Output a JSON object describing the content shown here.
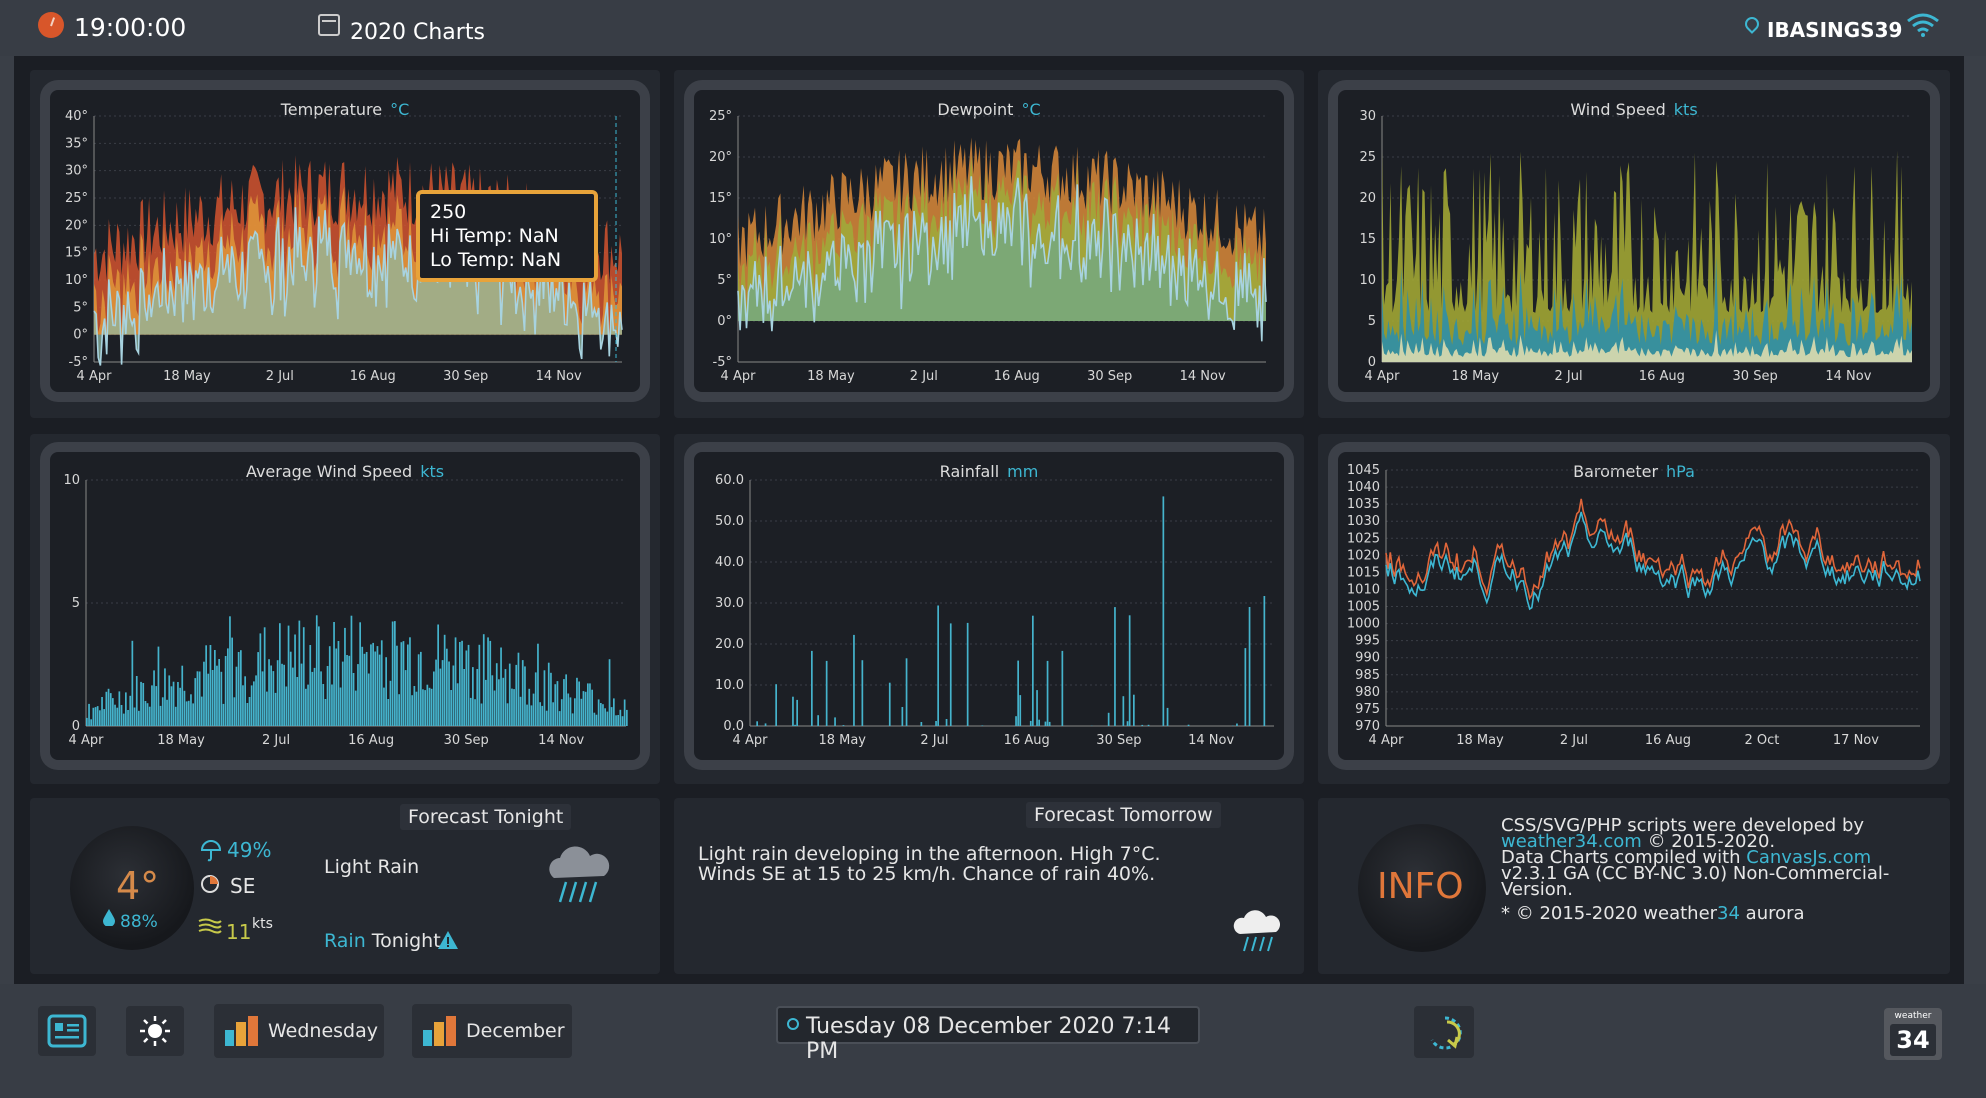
{
  "topbar": {
    "time": "19:00:00",
    "title": "2020 Charts",
    "station": "IBASINGS39",
    "icons": {
      "clock": "clock-icon",
      "calendar": "calendar-icon",
      "location": "location-pin-icon",
      "wifi": "wifi-icon"
    }
  },
  "colors": {
    "accent": "#3db7d2",
    "orange": "#e0773a",
    "background": "#1b1e24"
  },
  "charts": [
    {
      "title": "Temperature",
      "unit": "°C"
    },
    {
      "title": "Dewpoint",
      "unit": "°C"
    },
    {
      "title": "Wind Speed",
      "unit": "kts"
    },
    {
      "title": "Average Wind Speed",
      "unit": "kts"
    },
    {
      "title": "Rainfall",
      "unit": "mm"
    },
    {
      "title": "Barometer",
      "unit": "hPa"
    }
  ],
  "tooltip": {
    "line1": "250",
    "line2": "Hi Temp:  NaN",
    "line3": "Lo Temp:  NaN"
  },
  "chart_data": [
    {
      "type": "area",
      "title": "Temperature",
      "ylabel": "°C",
      "ylim": [
        -5,
        40
      ],
      "yticks": [
        "40°",
        "35°",
        "30°",
        "25°",
        "20°",
        "15°",
        "10°",
        "5°",
        "0°",
        "-5°"
      ],
      "xticks": [
        "4 Apr",
        "18 May",
        "2 Jul",
        "16 Aug",
        "30 Sep",
        "14 Nov"
      ],
      "grid": true
    },
    {
      "type": "area",
      "title": "Dewpoint",
      "ylabel": "°C",
      "ylim": [
        -5,
        25
      ],
      "yticks": [
        "25°",
        "20°",
        "15°",
        "10°",
        "5°",
        "0°",
        "-5°"
      ],
      "xticks": [
        "4 Apr",
        "18 May",
        "2 Jul",
        "16 Aug",
        "30 Sep",
        "14 Nov"
      ],
      "grid": true
    },
    {
      "type": "area",
      "title": "Wind Speed",
      "ylabel": "kts",
      "ylim": [
        0,
        30
      ],
      "yticks": [
        "30",
        "25",
        "20",
        "15",
        "10",
        "5",
        "0"
      ],
      "xticks": [
        "4 Apr",
        "18 May",
        "2 Jul",
        "16 Aug",
        "30 Sep",
        "14 Nov"
      ],
      "grid": true
    },
    {
      "type": "bar",
      "title": "Average Wind Speed",
      "ylabel": "kts",
      "ylim": [
        0,
        10
      ],
      "yticks": [
        "10",
        "5",
        "0"
      ],
      "xticks": [
        "4 Apr",
        "18 May",
        "2 Jul",
        "16 Aug",
        "30 Sep",
        "14 Nov"
      ],
      "grid": true
    },
    {
      "type": "bar",
      "title": "Rainfall",
      "ylabel": "mm",
      "ylim": [
        0,
        60
      ],
      "yticks": [
        "60.0",
        "50.0",
        "40.0",
        "30.0",
        "20.0",
        "10.0",
        "0.0"
      ],
      "xticks": [
        "4 Apr",
        "18 May",
        "2 Jul",
        "16 Aug",
        "30 Sep",
        "14 Nov"
      ],
      "grid": true
    },
    {
      "type": "line",
      "title": "Barometer",
      "ylabel": "hPa",
      "ylim": [
        970,
        1045
      ],
      "yticks": [
        "1045",
        "1040",
        "1035",
        "1030",
        "1025",
        "1020",
        "1015",
        "1010",
        "1005",
        "1000",
        "995",
        "990",
        "985",
        "980",
        "975",
        "970"
      ],
      "xticks": [
        "4 Apr",
        "18 May",
        "2 Jul",
        "16 Aug",
        "2 Oct",
        "17 Nov"
      ],
      "grid": true
    }
  ],
  "forecast_tonight": {
    "title": "Forecast Tonight",
    "temp": "4°",
    "humidity": "88%",
    "rain_chance": "49%",
    "wind_dir": "SE",
    "wind_speed": "11",
    "wind_unit": "kts",
    "condition": "Light Rain",
    "alert_word": "Rain",
    "alert_rest": "Tonight",
    "icon": "rain-cloud-icon"
  },
  "forecast_tomorrow": {
    "title": "Forecast Tomorrow",
    "line1": "Light rain developing in the afternoon. High 7°C.",
    "line2": "Winds SE at 15 to 25 km/h. Chance of rain 40%.",
    "icon": "rain-cloud-icon"
  },
  "info": {
    "label": "INFO",
    "line1": "CSS/SVG/PHP scripts were developed by",
    "link1": "weather34.com",
    "line2_rest": " © 2015-2020.",
    "line3": "Data Charts compiled with ",
    "link2": "CanvasJs.com",
    "line4": "v2.3.1 GA (CC BY-NC 3.0) Non-Commercial-",
    "line5": "Version.",
    "line6_a": "* © 2015-2020 weather",
    "line6_b": "34",
    "line6_c": " aurora"
  },
  "bottombar": {
    "btn_day": "Wednesday",
    "btn_month": "December",
    "datetime": "Tuesday 08 December 2020 7:14 PM",
    "logo_top": "weather",
    "logo_num": "34"
  }
}
